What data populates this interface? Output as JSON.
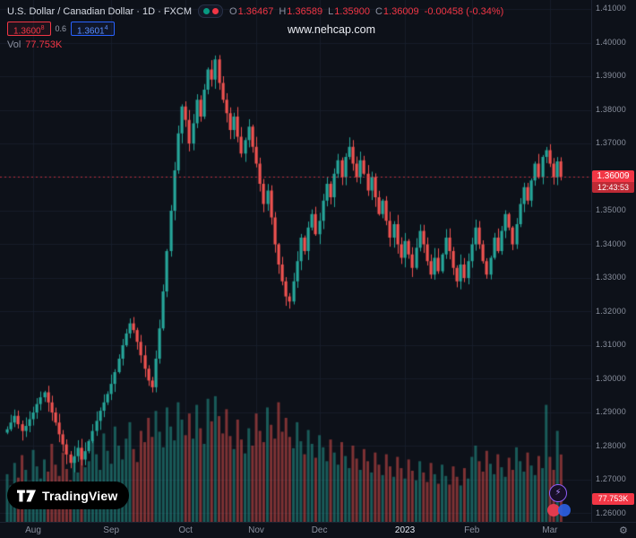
{
  "colors": {
    "background": "#0d1119",
    "up": "#26a69a",
    "down": "#ef5350",
    "accent_red": "#f23645",
    "accent_blue": "#2962ff",
    "grid": "#171d2a"
  },
  "legend": {
    "symbol_line": "U.S. Dollar / Canadian Dollar · 1D · FXCM",
    "o_label": "O",
    "o_value": "1.36467",
    "h_label": "H",
    "h_value": "1.36589",
    "l_label": "L",
    "l_value": "1.35900",
    "c_label": "C",
    "c_value": "1.36009",
    "change": "-0.00458 (-0.34%)"
  },
  "quote_panel": {
    "sell_main": "1.3600",
    "sell_sup": "8",
    "spread": "0.6",
    "buy_main": "1.3601",
    "buy_sup": "4"
  },
  "volume_row": {
    "label": "Vol",
    "value": "77.753K"
  },
  "watermark": "www.nehcap.com",
  "price_axis": {
    "ticks": [
      1.41,
      1.4,
      1.39,
      1.38,
      1.37,
      1.36,
      1.35,
      1.34,
      1.33,
      1.32,
      1.31,
      1.3,
      1.29,
      1.28,
      1.27,
      1.26
    ],
    "last_price": "1.36009",
    "countdown": "12:43:53",
    "volume_value": "77.753K"
  },
  "time_axis": {
    "months": [
      {
        "label": "Aug",
        "index": 7
      },
      {
        "label": "Sep",
        "index": 28
      },
      {
        "label": "Oct",
        "index": 48
      },
      {
        "label": "Nov",
        "index": 67
      },
      {
        "label": "Dec",
        "index": 84
      },
      {
        "label": "2023",
        "index": 107,
        "bright": true
      },
      {
        "label": "Feb",
        "index": 125
      },
      {
        "label": "Mar",
        "index": 146
      }
    ]
  },
  "logo_text": "TradingView",
  "chart_data": {
    "type": "candlestick",
    "title": "U.S. Dollar / Canadian Dollar, 1D, FXCM",
    "x_range": [
      "Aug 2022",
      "Mar 2023"
    ],
    "price_axis_min": 1.2585,
    "price_axis_max": 1.4125,
    "tick_step": 0.01,
    "approx_period_high": 1.3977,
    "approx_period_low": 1.2728,
    "first_open": 1.284,
    "closes": [
      1.285,
      1.287,
      1.289,
      1.2865,
      1.2845,
      1.286,
      1.288,
      1.29,
      1.2925,
      1.2945,
      1.296,
      1.293,
      1.29,
      1.287,
      1.2835,
      1.2805,
      1.2775,
      1.275,
      1.277,
      1.2795,
      1.276,
      1.2785,
      1.2815,
      1.2845,
      1.2875,
      1.2905,
      1.293,
      1.2955,
      1.2985,
      1.302,
      1.306,
      1.31,
      1.3135,
      1.3165,
      1.3145,
      1.311,
      1.307,
      1.303,
      1.2995,
      1.2975,
      1.306,
      1.315,
      1.326,
      1.338,
      1.35,
      1.362,
      1.373,
      1.381,
      1.377,
      1.37,
      1.376,
      1.383,
      1.378,
      1.386,
      1.392,
      1.389,
      1.395,
      1.388,
      1.383,
      1.379,
      1.374,
      1.378,
      1.372,
      1.367,
      1.371,
      1.375,
      1.369,
      1.364,
      1.358,
      1.352,
      1.356,
      1.348,
      1.34,
      1.334,
      1.329,
      1.3245,
      1.323,
      1.329,
      1.335,
      1.342,
      1.338,
      1.345,
      1.349,
      1.343,
      1.347,
      1.353,
      1.358,
      1.354,
      1.361,
      1.365,
      1.36,
      1.366,
      1.369,
      1.364,
      1.36,
      1.365,
      1.361,
      1.356,
      1.36,
      1.354,
      1.349,
      1.353,
      1.347,
      1.342,
      1.346,
      1.34,
      1.336,
      1.341,
      1.337,
      1.333,
      1.339,
      1.344,
      1.34,
      1.335,
      1.331,
      1.336,
      1.332,
      1.337,
      1.342,
      1.338,
      1.333,
      1.329,
      1.334,
      1.33,
      1.335,
      1.34,
      1.345,
      1.34,
      1.335,
      1.331,
      1.336,
      1.342,
      1.338,
      1.344,
      1.349,
      1.345,
      1.34,
      1.346,
      1.352,
      1.357,
      1.353,
      1.359,
      1.364,
      1.36,
      1.366,
      1.368,
      1.364,
      1.36,
      1.36467,
      1.36009
    ],
    "volumes_k": [
      55,
      42,
      68,
      51,
      77,
      60,
      47,
      83,
      64,
      50,
      72,
      58,
      90,
      66,
      53,
      80,
      61,
      48,
      74,
      57,
      85,
      63,
      70,
      95,
      78,
      60,
      102,
      82,
      67,
      110,
      88,
      72,
      96,
      115,
      84,
      69,
      105,
      92,
      120,
      98,
      128,
      104,
      86,
      132,
      110,
      94,
      138,
      118,
      100,
      125,
      96,
      135,
      108,
      90,
      142,
      116,
      145,
      122,
      102,
      130,
      99,
      84,
      118,
      95,
      79,
      108,
      88,
      125,
      105,
      92,
      132,
      112,
      96,
      138,
      104,
      120,
      98,
      85,
      115,
      93,
      78,
      106,
      90,
      74,
      100,
      86,
      70,
      95,
      80,
      66,
      92,
      76,
      62,
      88,
      73,
      60,
      84,
      70,
      57,
      80,
      66,
      54,
      78,
      64,
      52,
      75,
      62,
      50,
      72,
      59,
      48,
      70,
      57,
      46,
      68,
      55,
      44,
      66,
      53,
      43,
      64,
      52,
      42,
      62,
      50,
      75,
      88,
      70,
      58,
      82,
      67,
      55,
      78,
      63,
      52,
      74,
      60,
      86,
      70,
      58,
      80,
      65,
      54,
      76,
      62,
      135,
      75,
      60,
      105,
      77.753
    ],
    "volume_axis_max_k": 150,
    "last_candle": {
      "open": 1.36467,
      "high": 1.36589,
      "low": 1.359,
      "close": 1.36009
    },
    "grid": true,
    "legend_position": "top-left"
  }
}
